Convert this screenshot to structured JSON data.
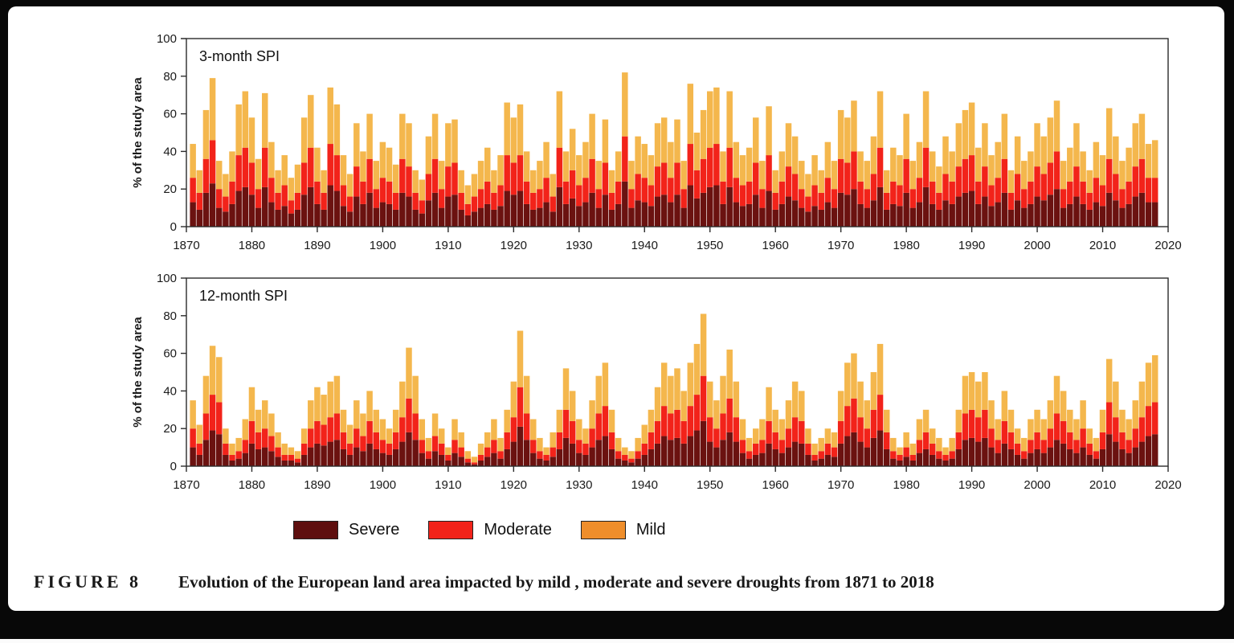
{
  "page": {
    "figure_label": "FIGURE 8",
    "figure_caption": "Evolution of the European land area impacted by mild , moderate and severe droughts from 1871 to 2018"
  },
  "legend": {
    "position": "bottom",
    "items": [
      {
        "label": "Severe",
        "color": "#5E0F0F"
      },
      {
        "label": "Moderate",
        "color": "#F2231A"
      },
      {
        "label": "Mild",
        "color": "#EF8E2B"
      }
    ]
  },
  "chart_data": [
    {
      "type": "bar",
      "stacked": true,
      "title": "3-month SPI",
      "ylabel": "% of the study area",
      "ylim": [
        0,
        100
      ],
      "xlim": [
        1870,
        2020
      ],
      "yticks": [
        0,
        20,
        40,
        60,
        80,
        100
      ],
      "xticks": [
        1870,
        1880,
        1890,
        1900,
        1910,
        1920,
        1930,
        1940,
        1950,
        1960,
        1970,
        1980,
        1990,
        2000,
        2010,
        2020
      ],
      "years_start": 1871,
      "grid": false,
      "series": [
        {
          "name": "Severe",
          "color": "#6B1210",
          "values": [
            13,
            9,
            18,
            23,
            10,
            8,
            12,
            19,
            21,
            17,
            10,
            21,
            13,
            9,
            11,
            7,
            9,
            17,
            21,
            12,
            9,
            22,
            19,
            11,
            8,
            16,
            12,
            18,
            10,
            13,
            12,
            9,
            18,
            16,
            9,
            7,
            14,
            18,
            10,
            16,
            17,
            9,
            6,
            8,
            10,
            12,
            9,
            11,
            19,
            17,
            19,
            12,
            9,
            10,
            13,
            8,
            21,
            12,
            15,
            11,
            13,
            18,
            10,
            17,
            9,
            12,
            24,
            10,
            14,
            13,
            11,
            16,
            17,
            13,
            17,
            10,
            22,
            15,
            18,
            21,
            22,
            12,
            21,
            13,
            11,
            12,
            17,
            10,
            19,
            9,
            12,
            16,
            14,
            10,
            8,
            11,
            9,
            13,
            10,
            18,
            17,
            20,
            12,
            10,
            14,
            21,
            9,
            12,
            11,
            18,
            10,
            13,
            21,
            12,
            9,
            14,
            12,
            16,
            18,
            19,
            12,
            16,
            11,
            13,
            18,
            9,
            14,
            10,
            12,
            16,
            14,
            17,
            20,
            10,
            12,
            16,
            12,
            9,
            13,
            11,
            18,
            14,
            10,
            12,
            16,
            18,
            13,
            13
          ]
        },
        {
          "name": "Moderate",
          "color": "#F2231A",
          "values": [
            13,
            9,
            18,
            23,
            10,
            8,
            12,
            19,
            21,
            17,
            10,
            21,
            13,
            9,
            11,
            7,
            9,
            17,
            21,
            12,
            9,
            22,
            19,
            11,
            8,
            16,
            12,
            18,
            10,
            13,
            12,
            9,
            18,
            16,
            9,
            7,
            14,
            18,
            10,
            16,
            17,
            9,
            6,
            8,
            10,
            12,
            9,
            11,
            19,
            17,
            19,
            12,
            9,
            10,
            13,
            8,
            21,
            12,
            15,
            11,
            13,
            18,
            10,
            17,
            9,
            12,
            24,
            10,
            14,
            13,
            11,
            16,
            17,
            13,
            17,
            10,
            22,
            15,
            18,
            21,
            22,
            12,
            21,
            13,
            11,
            12,
            17,
            10,
            19,
            9,
            12,
            16,
            14,
            10,
            8,
            11,
            9,
            13,
            10,
            18,
            17,
            20,
            12,
            10,
            14,
            21,
            9,
            12,
            11,
            18,
            10,
            13,
            21,
            12,
            9,
            14,
            12,
            16,
            18,
            19,
            12,
            16,
            11,
            13,
            18,
            9,
            14,
            10,
            12,
            16,
            14,
            17,
            20,
            10,
            12,
            16,
            12,
            9,
            13,
            11,
            18,
            14,
            10,
            12,
            16,
            18,
            13,
            13
          ]
        },
        {
          "name": "Mild",
          "color": "#F4B74D",
          "values": [
            18,
            12,
            26,
            33,
            15,
            12,
            16,
            27,
            30,
            24,
            16,
            29,
            19,
            12,
            16,
            12,
            15,
            24,
            28,
            18,
            12,
            30,
            27,
            16,
            12,
            23,
            16,
            24,
            15,
            19,
            18,
            15,
            24,
            23,
            12,
            11,
            20,
            24,
            15,
            23,
            23,
            12,
            10,
            12,
            15,
            18,
            12,
            16,
            28,
            24,
            27,
            16,
            12,
            15,
            19,
            12,
            30,
            16,
            22,
            16,
            19,
            24,
            15,
            23,
            12,
            16,
            34,
            15,
            20,
            18,
            16,
            23,
            24,
            19,
            23,
            15,
            32,
            20,
            26,
            30,
            30,
            16,
            30,
            19,
            16,
            18,
            24,
            15,
            26,
            12,
            16,
            23,
            20,
            15,
            12,
            16,
            12,
            19,
            15,
            26,
            24,
            27,
            16,
            15,
            20,
            30,
            12,
            18,
            16,
            24,
            15,
            19,
            30,
            16,
            14,
            20,
            16,
            23,
            26,
            28,
            18,
            23,
            16,
            19,
            24,
            12,
            20,
            15,
            16,
            23,
            20,
            24,
            27,
            15,
            18,
            23,
            16,
            12,
            19,
            16,
            27,
            20,
            15,
            18,
            23,
            24,
            18,
            20
          ]
        }
      ]
    },
    {
      "type": "bar",
      "stacked": true,
      "title": "12-month SPI",
      "ylabel": "% of the study area",
      "ylim": [
        0,
        100
      ],
      "xlim": [
        1870,
        2020
      ],
      "yticks": [
        0,
        20,
        40,
        60,
        80,
        100
      ],
      "xticks": [
        1870,
        1880,
        1890,
        1900,
        1910,
        1920,
        1930,
        1940,
        1950,
        1960,
        1970,
        1980,
        1990,
        2000,
        2010,
        2020
      ],
      "years_start": 1871,
      "grid": false,
      "series": [
        {
          "name": "Severe",
          "color": "#6B1210",
          "values": [
            10,
            6,
            14,
            19,
            17,
            6,
            3,
            4,
            7,
            12,
            9,
            10,
            8,
            5,
            3,
            3,
            2,
            6,
            10,
            12,
            11,
            13,
            14,
            9,
            6,
            10,
            8,
            12,
            9,
            7,
            6,
            9,
            13,
            18,
            14,
            7,
            4,
            8,
            6,
            3,
            7,
            5,
            2,
            1,
            3,
            5,
            7,
            4,
            9,
            13,
            21,
            14,
            7,
            4,
            3,
            5,
            9,
            15,
            12,
            7,
            6,
            10,
            14,
            16,
            9,
            4,
            3,
            2,
            4,
            6,
            9,
            12,
            16,
            14,
            15,
            12,
            16,
            19,
            24,
            13,
            10,
            14,
            18,
            13,
            7,
            4,
            6,
            7,
            12,
            9,
            7,
            10,
            13,
            12,
            6,
            3,
            4,
            6,
            5,
            12,
            16,
            18,
            13,
            10,
            15,
            19,
            9,
            4,
            3,
            5,
            3,
            7,
            9,
            6,
            4,
            3,
            4,
            9,
            14,
            15,
            13,
            15,
            10,
            7,
            12,
            9,
            6,
            4,
            7,
            9,
            7,
            10,
            14,
            12,
            9,
            7,
            10,
            6,
            4,
            9,
            17,
            13,
            9,
            7,
            10,
            13,
            16,
            17
          ]
        },
        {
          "name": "Moderate",
          "color": "#F2231A",
          "values": [
            10,
            6,
            14,
            19,
            17,
            6,
            3,
            4,
            7,
            12,
            9,
            10,
            8,
            5,
            3,
            3,
            2,
            6,
            10,
            12,
            11,
            13,
            14,
            9,
            6,
            10,
            8,
            12,
            9,
            7,
            6,
            9,
            13,
            18,
            14,
            7,
            4,
            8,
            6,
            3,
            7,
            5,
            2,
            1,
            3,
            5,
            7,
            4,
            9,
            13,
            21,
            14,
            7,
            4,
            3,
            5,
            9,
            15,
            12,
            7,
            6,
            10,
            14,
            16,
            9,
            4,
            3,
            2,
            4,
            6,
            9,
            12,
            16,
            14,
            15,
            12,
            16,
            19,
            24,
            13,
            10,
            14,
            18,
            13,
            7,
            4,
            6,
            7,
            12,
            9,
            7,
            10,
            13,
            12,
            6,
            3,
            4,
            6,
            5,
            12,
            16,
            18,
            13,
            10,
            15,
            19,
            9,
            4,
            3,
            5,
            3,
            7,
            9,
            6,
            4,
            3,
            4,
            9,
            14,
            15,
            13,
            15,
            10,
            7,
            12,
            9,
            6,
            4,
            7,
            9,
            7,
            10,
            14,
            12,
            9,
            7,
            10,
            6,
            4,
            9,
            17,
            13,
            9,
            7,
            10,
            13,
            16,
            17
          ]
        },
        {
          "name": "Mild",
          "color": "#F4B74D",
          "values": [
            15,
            10,
            20,
            26,
            24,
            8,
            6,
            7,
            11,
            18,
            12,
            15,
            12,
            8,
            6,
            4,
            4,
            8,
            15,
            18,
            16,
            19,
            20,
            12,
            10,
            15,
            12,
            16,
            12,
            11,
            8,
            12,
            19,
            27,
            20,
            11,
            7,
            12,
            8,
            4,
            11,
            8,
            4,
            3,
            6,
            8,
            11,
            7,
            12,
            19,
            30,
            20,
            11,
            7,
            4,
            8,
            12,
            22,
            16,
            11,
            8,
            15,
            20,
            23,
            12,
            7,
            4,
            4,
            7,
            10,
            12,
            18,
            23,
            20,
            22,
            16,
            23,
            27,
            33,
            19,
            15,
            20,
            26,
            19,
            11,
            7,
            8,
            11,
            18,
            12,
            11,
            15,
            19,
            16,
            8,
            6,
            7,
            8,
            8,
            16,
            23,
            24,
            19,
            15,
            20,
            27,
            12,
            7,
            4,
            8,
            6,
            11,
            12,
            8,
            7,
            4,
            7,
            12,
            20,
            20,
            19,
            20,
            15,
            11,
            16,
            12,
            8,
            7,
            11,
            12,
            11,
            15,
            20,
            16,
            12,
            11,
            15,
            8,
            7,
            12,
            23,
            19,
            12,
            11,
            15,
            19,
            23,
            25
          ]
        }
      ]
    }
  ]
}
